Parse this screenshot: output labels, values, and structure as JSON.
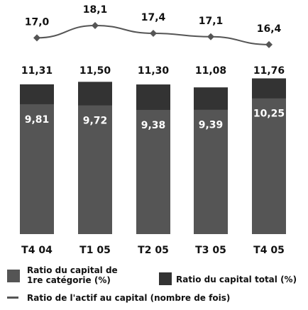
{
  "chart_data": {
    "type": "bar",
    "categories": [
      "T4 04",
      "T1 05",
      "T2 05",
      "T3 05",
      "T4 05"
    ],
    "series": [
      {
        "name": "Ratio du capital de 1re catégorie (%)",
        "color": "#555555",
        "values": [
          9.81,
          9.72,
          9.38,
          9.39,
          10.25
        ],
        "value_labels": [
          "9,81",
          "9,72",
          "9,38",
          "9,39",
          "10,25"
        ]
      },
      {
        "name": "Ratio du capital total (%)",
        "color": "#333333",
        "values": [
          11.31,
          11.5,
          11.3,
          11.08,
          11.76
        ],
        "value_labels": [
          "11,31",
          "11,50",
          "11,30",
          "11,08",
          "11,76"
        ]
      },
      {
        "name": "Ratio de l'actif au capital (nombre de fois)",
        "color": "#555555",
        "type": "line",
        "axis": "y2",
        "values": [
          17.0,
          18.1,
          17.4,
          17.1,
          16.4
        ],
        "value_labels": [
          "17,0",
          "18,1",
          "17,4",
          "17,1",
          "16,4"
        ]
      }
    ],
    "ylim": [
      0,
      12
    ],
    "y2lim": [
      15,
      19
    ]
  }
}
